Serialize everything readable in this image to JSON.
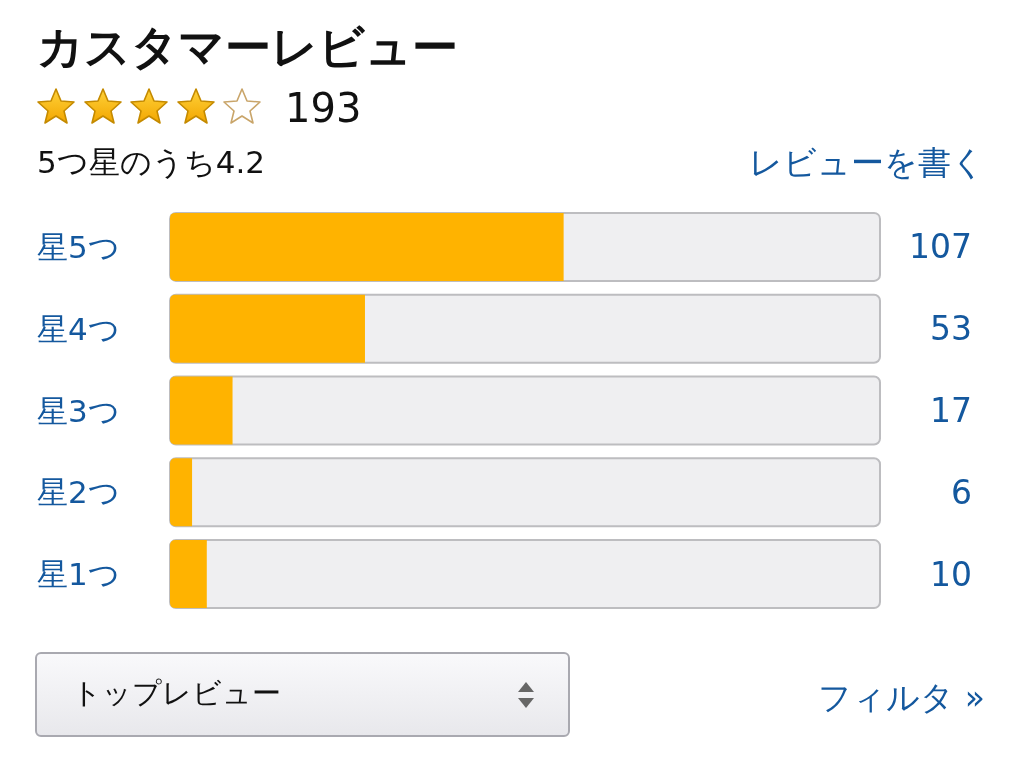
{
  "chart_data": {
    "type": "bar",
    "orientation": "horizontal",
    "title": "カスタマーレビュー",
    "annotations": [
      "193",
      "5つ星のうち4.2",
      "レビューを書く",
      "トップレビュー",
      "フィルタ »"
    ],
    "categories": [
      "星5つ",
      "星4つ",
      "星3つ",
      "星2つ",
      "星1つ"
    ],
    "values": [
      107,
      53,
      17,
      6,
      10
    ],
    "color": "#ffb300",
    "xlim": [
      0,
      193
    ],
    "data_labels": true,
    "tick_labels": "y"
  }
}
